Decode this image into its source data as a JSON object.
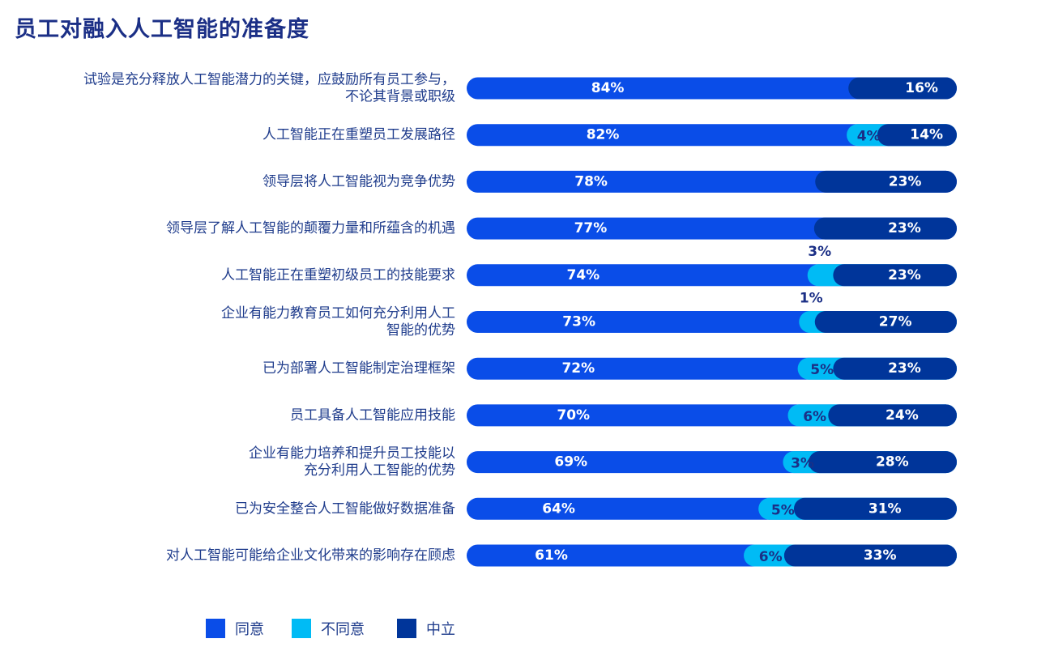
{
  "chart_data": {
    "type": "bar",
    "stacked": true,
    "orientation": "horizontal",
    "title": "员工对融入人工智能的准备度",
    "categories": [
      [
        "试验是充分释放人工智能潜力的关键，应鼓励所有员工参与，",
        "不论其背景或职级"
      ],
      [
        "人工智能正在重塑员工发展路径"
      ],
      [
        "领导层将人工智能视为竞争优势"
      ],
      [
        "领导层了解人工智能的颠覆力量和所蕴含的机遇"
      ],
      [
        "人工智能正在重塑初级员工的技能要求"
      ],
      [
        "企业有能力教育员工如何充分利用人工",
        "智能的优势"
      ],
      [
        "已为部署人工智能制定治理框架"
      ],
      [
        "员工具备人工智能应用技能"
      ],
      [
        "企业有能力培养和提升员工技能以",
        "充分利用人工智能的优势"
      ],
      [
        "已为安全整合人工智能做好数据准备"
      ],
      [
        "对人工智能可能给企业文化带来的影响存在顾虑"
      ]
    ],
    "series": [
      {
        "name": "同意",
        "color": "#0a4de8",
        "values": [
          84,
          82,
          78,
          77,
          74,
          73,
          72,
          70,
          69,
          64,
          61
        ]
      },
      {
        "name": "不同意",
        "color": "#00bbf5",
        "values": [
          null,
          4,
          null,
          null,
          3,
          1,
          5,
          6,
          3,
          5,
          6
        ]
      },
      {
        "name": "中立",
        "color": "#00359a",
        "values": [
          16,
          14,
          23,
          23,
          23,
          27,
          23,
          24,
          28,
          31,
          33
        ]
      }
    ],
    "value_suffix": "%",
    "legend_position": "bottom-left"
  }
}
